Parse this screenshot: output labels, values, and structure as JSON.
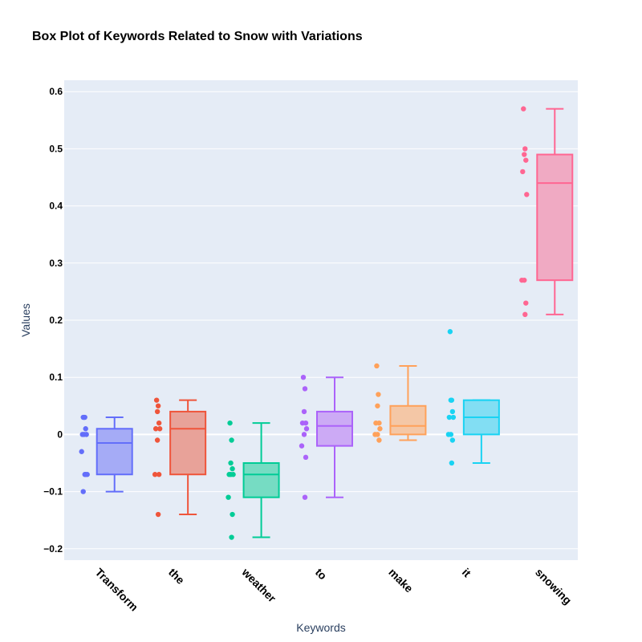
{
  "chart_data": {
    "type": "box",
    "title": "Box Plot of Keywords Related to Snow with Variations",
    "xlabel": "Keywords",
    "ylabel": "Values",
    "ylim": [
      -0.22,
      0.62
    ],
    "yticks": [
      -0.2,
      -0.1,
      0,
      0.1,
      0.2,
      0.3,
      0.4,
      0.5,
      0.6
    ],
    "ytick_labels": [
      "−0.2",
      "−0.1",
      "0",
      "0.1",
      "0.2",
      "0.3",
      "0.4",
      "0.5",
      "0.6"
    ],
    "background": "#e5ecf6",
    "categories": [
      "Transform",
      "the",
      "weather",
      "to",
      "make",
      "it",
      "snowing"
    ],
    "series": [
      {
        "name": "Transform",
        "color": "#636efa",
        "fill": "#a5abf6",
        "min": -0.1,
        "q1": -0.07,
        "median": -0.015,
        "q3": 0.01,
        "max": 0.03,
        "points": [
          0.03,
          0.03,
          0.03,
          0.01,
          0,
          0,
          0,
          -0.03,
          -0.07,
          -0.07,
          -0.07,
          -0.1
        ]
      },
      {
        "name": "the",
        "color": "#ef553b",
        "fill": "#e8a299",
        "min": -0.14,
        "q1": -0.07,
        "median": 0.01,
        "q3": 0.04,
        "max": 0.06,
        "points": [
          0.06,
          0.05,
          0.04,
          0.02,
          0.01,
          0.01,
          -0.01,
          -0.07,
          -0.07,
          -0.14
        ]
      },
      {
        "name": "weather",
        "color": "#00cc96",
        "fill": "#76dcc3",
        "min": -0.18,
        "q1": -0.11,
        "median": -0.07,
        "q3": -0.05,
        "max": 0.02,
        "points": [
          0.02,
          -0.01,
          -0.05,
          -0.06,
          -0.07,
          -0.07,
          -0.07,
          -0.11,
          -0.14,
          -0.18
        ]
      },
      {
        "name": "to",
        "color": "#ab63fa",
        "fill": "#ccaaf5",
        "min": -0.11,
        "q1": -0.02,
        "median": 0.015,
        "q3": 0.04,
        "max": 0.1,
        "points": [
          0.1,
          0.08,
          0.04,
          0.02,
          0.02,
          0.01,
          0,
          -0.02,
          -0.04,
          -0.11
        ]
      },
      {
        "name": "make",
        "color": "#ffa15a",
        "fill": "#f4c7a6",
        "min": -0.01,
        "q1": 0,
        "median": 0.015,
        "q3": 0.05,
        "max": 0.12,
        "points": [
          0.12,
          0.07,
          0.05,
          0.02,
          0.02,
          0.01,
          0,
          0,
          -0.01
        ]
      },
      {
        "name": "it",
        "color": "#19d3f3",
        "fill": "#82def3",
        "min": -0.05,
        "q1": 0,
        "median": 0.03,
        "q3": 0.06,
        "max": 0.06,
        "points": [
          0.18,
          0.06,
          0.06,
          0.04,
          0.03,
          0.03,
          0,
          0,
          -0.01,
          -0.05
        ]
      },
      {
        "name": "snowing",
        "color": "#ff6692",
        "fill": "#f0aac3",
        "min": 0.21,
        "q1": 0.27,
        "median": 0.44,
        "q3": 0.49,
        "max": 0.57,
        "points": [
          0.57,
          0.5,
          0.49,
          0.48,
          0.46,
          0.42,
          0.27,
          0.27,
          0.23,
          0.21
        ]
      }
    ]
  }
}
